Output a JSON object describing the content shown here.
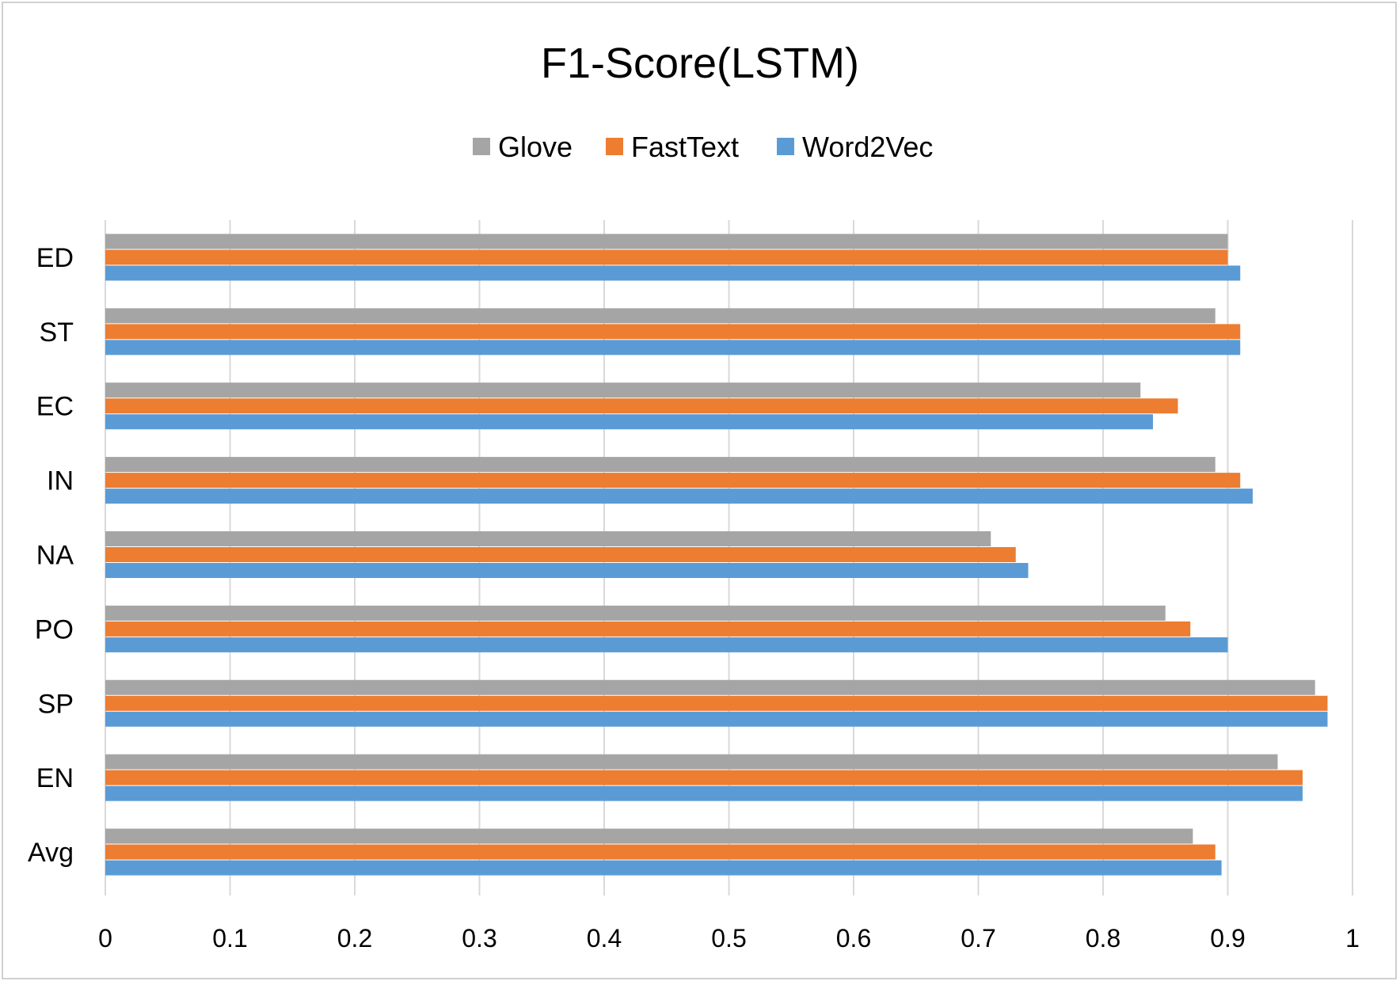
{
  "chart_data": {
    "type": "bar",
    "orientation": "horizontal",
    "title": "F1-Score(LSTM)",
    "categories": [
      "ED",
      "ST",
      "EC",
      "IN",
      "NA",
      "PO",
      "SP",
      "EN",
      "Avg"
    ],
    "series": [
      {
        "name": "Glove",
        "color": "#a5a5a5",
        "values": [
          0.9,
          0.89,
          0.83,
          0.89,
          0.71,
          0.85,
          0.97,
          0.94,
          0.872
        ]
      },
      {
        "name": "FastText",
        "color": "#ed7d31",
        "values": [
          0.9,
          0.91,
          0.86,
          0.91,
          0.73,
          0.87,
          0.98,
          0.96,
          0.89
        ]
      },
      {
        "name": "Word2Vec",
        "color": "#5b9bd5",
        "values": [
          0.91,
          0.91,
          0.84,
          0.92,
          0.74,
          0.9,
          0.98,
          0.96,
          0.895
        ]
      }
    ],
    "legend_order": [
      "Glove",
      "FastText",
      "Word2Vec"
    ],
    "legend_position": "top",
    "xlim": [
      0,
      1
    ],
    "xticks": [
      "0",
      "0.1",
      "0.2",
      "0.3",
      "0.4",
      "0.5",
      "0.6",
      "0.7",
      "0.8",
      "0.9",
      "1"
    ],
    "grid": true,
    "gridline_color": "#d9d9d9"
  }
}
